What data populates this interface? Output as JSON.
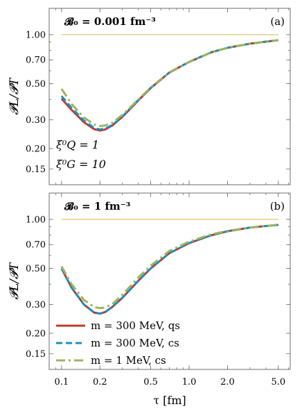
{
  "chart_data": [
    {
      "type": "line",
      "panel_title": "𝓑₀ = 0.001 fm⁻³",
      "panel_tag": "(a)",
      "ylabel": "𝓟L/𝓟T",
      "xlabel": "",
      "xscale": "log",
      "yscale": "log",
      "xlim": [
        0.08,
        6.2
      ],
      "ylim": [
        0.12,
        1.45
      ],
      "y_ticks": [
        "0.15",
        "0.20",
        "0.30",
        "0.50",
        "0.70",
        "1.00"
      ],
      "annotations": [
        "ξ⁰Q = 1",
        "ξ⁰G = 10"
      ],
      "reference_line_y": 1.0,
      "series": [
        {
          "name": "m = 300 MeV, qs",
          "color": "#c0392b",
          "dash": "solid",
          "x": [
            0.1,
            0.12,
            0.15,
            0.18,
            0.2,
            0.22,
            0.25,
            0.3,
            0.4,
            0.5,
            0.7,
            1.0,
            1.5,
            2.0,
            3.0,
            4.0,
            5.0
          ],
          "y": [
            0.405,
            0.345,
            0.29,
            0.263,
            0.258,
            0.262,
            0.277,
            0.313,
            0.395,
            0.47,
            0.585,
            0.68,
            0.78,
            0.83,
            0.88,
            0.905,
            0.925
          ]
        },
        {
          "name": "m = 300 MeV, cs",
          "color": "#1a8fc0",
          "dash": "9,5",
          "x": [
            0.1,
            0.12,
            0.15,
            0.18,
            0.2,
            0.22,
            0.25,
            0.3,
            0.4,
            0.5,
            0.7,
            1.0,
            1.5,
            2.0,
            3.0,
            4.0,
            5.0
          ],
          "y": [
            0.42,
            0.355,
            0.297,
            0.268,
            0.262,
            0.265,
            0.279,
            0.315,
            0.397,
            0.472,
            0.586,
            0.681,
            0.781,
            0.83,
            0.88,
            0.905,
            0.925
          ]
        },
        {
          "name": "m = 1 MeV, cs",
          "color": "#9ab560",
          "dash": "13,5,3,5",
          "x": [
            0.1,
            0.12,
            0.15,
            0.18,
            0.2,
            0.22,
            0.25,
            0.3,
            0.4,
            0.5,
            0.7,
            1.0,
            1.5,
            2.0,
            3.0,
            4.0,
            5.0
          ],
          "y": [
            0.465,
            0.375,
            0.31,
            0.281,
            0.275,
            0.277,
            0.288,
            0.322,
            0.4,
            0.474,
            0.587,
            0.681,
            0.781,
            0.83,
            0.88,
            0.905,
            0.925
          ]
        }
      ]
    },
    {
      "type": "line",
      "panel_title": "𝓑₀ = 1 fm⁻³",
      "panel_tag": "(b)",
      "ylabel": "𝓟L/𝓟T",
      "xlabel": "τ [fm]",
      "xscale": "log",
      "yscale": "log",
      "xlim": [
        0.08,
        6.2
      ],
      "ylim": [
        0.12,
        1.45
      ],
      "x_ticks": [
        "0.1",
        "0.2",
        "0.5",
        "1.0",
        "2.0",
        "5.0"
      ],
      "y_ticks": [
        "0.15",
        "0.20",
        "0.30",
        "0.50",
        "0.70",
        "1.00"
      ],
      "reference_line_y": 1.0,
      "legend": "lower-left",
      "series": [
        {
          "name": "m = 300 MeV, qs",
          "color": "#c0392b",
          "dash": "solid",
          "x": [
            0.1,
            0.12,
            0.15,
            0.18,
            0.2,
            0.22,
            0.25,
            0.3,
            0.4,
            0.5,
            0.7,
            1.0,
            1.5,
            2.0,
            3.0,
            4.0,
            5.0
          ],
          "y": [
            0.5,
            0.38,
            0.3,
            0.268,
            0.264,
            0.27,
            0.29,
            0.33,
            0.42,
            0.5,
            0.62,
            0.715,
            0.8,
            0.845,
            0.89,
            0.91,
            0.925
          ]
        },
        {
          "name": "m = 300 MeV, cs",
          "color": "#1a8fc0",
          "dash": "9,5",
          "x": [
            0.1,
            0.12,
            0.15,
            0.18,
            0.2,
            0.22,
            0.25,
            0.3,
            0.4,
            0.5,
            0.7,
            1.0,
            1.5,
            2.0,
            3.0,
            4.0,
            5.0
          ],
          "y": [
            0.5,
            0.38,
            0.3,
            0.268,
            0.264,
            0.27,
            0.29,
            0.33,
            0.42,
            0.5,
            0.62,
            0.715,
            0.8,
            0.845,
            0.89,
            0.91,
            0.925
          ]
        },
        {
          "name": "m = 1 MeV, cs",
          "color": "#9ab560",
          "dash": "13,5,3,5",
          "x": [
            0.1,
            0.12,
            0.15,
            0.18,
            0.2,
            0.22,
            0.25,
            0.3,
            0.4,
            0.5,
            0.7,
            1.0,
            1.5,
            2.0,
            3.0,
            4.0,
            5.0
          ],
          "y": [
            0.515,
            0.4,
            0.32,
            0.29,
            0.285,
            0.288,
            0.302,
            0.345,
            0.44,
            0.52,
            0.64,
            0.73,
            0.81,
            0.85,
            0.89,
            0.91,
            0.925
          ]
        }
      ]
    }
  ]
}
